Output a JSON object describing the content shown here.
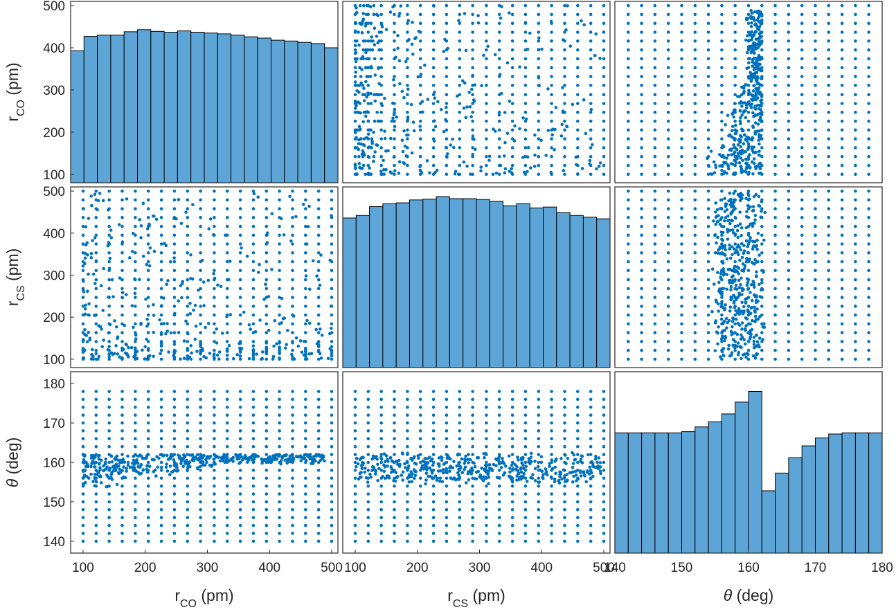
{
  "colors": {
    "marker": "#0072BD",
    "bar_fill": "#5DA5D6",
    "bar_edge": "#000000",
    "axes": "#262626",
    "background": "#FFFFFF"
  },
  "chart_data": {
    "type": "scatter-matrix",
    "variables": [
      {
        "key": "r_CO",
        "base": "r",
        "sub": "CO",
        "unit": " (pm)",
        "range": [
          80,
          510
        ],
        "ticks": [
          100,
          200,
          300,
          400,
          500
        ],
        "grid_values": [
          100,
          121,
          142,
          163,
          184,
          205,
          226,
          247,
          268,
          289,
          311,
          332,
          353,
          374,
          395,
          416,
          437,
          458,
          479,
          500
        ]
      },
      {
        "key": "r_CS",
        "base": "r",
        "sub": "CS",
        "unit": " (pm)",
        "range": [
          80,
          510
        ],
        "ticks": [
          100,
          200,
          300,
          400,
          500
        ],
        "grid_values": [
          100,
          121,
          142,
          163,
          184,
          205,
          226,
          247,
          268,
          289,
          311,
          332,
          353,
          374,
          395,
          416,
          437,
          458,
          479,
          500
        ]
      },
      {
        "key": "theta",
        "base": "θ",
        "sub": "",
        "unit": " (deg)",
        "range": [
          140,
          180
        ],
        "y_range": [
          137,
          183
        ],
        "ticks": [
          140,
          150,
          160,
          170,
          180
        ],
        "grid_values": [
          140,
          142,
          144,
          146,
          148,
          150,
          152,
          154,
          156,
          158,
          160,
          162,
          164,
          166,
          168,
          170,
          172,
          174,
          176,
          178
        ]
      }
    ],
    "histograms": [
      {
        "variable": "r_CO",
        "bin_edges": [
          80,
          101.5,
          123,
          144.5,
          166,
          187.5,
          209,
          230.5,
          252,
          273.5,
          295,
          316.5,
          338,
          359.5,
          381,
          402.5,
          424,
          445.5,
          467,
          488.5,
          510
        ],
        "values": [
          393,
          427,
          430,
          430,
          438,
          443,
          439,
          437,
          440,
          437,
          435,
          433,
          430,
          426,
          423,
          418,
          416,
          413,
          410,
          400
        ]
      },
      {
        "variable": "r_CS",
        "bin_edges": [
          80,
          101.5,
          123,
          144.5,
          166,
          187.5,
          209,
          230.5,
          252,
          273.5,
          295,
          316.5,
          338,
          359.5,
          381,
          402.5,
          424,
          445.5,
          467,
          488.5,
          510
        ],
        "values": [
          436,
          442,
          463,
          470,
          472,
          479,
          481,
          487,
          482,
          482,
          480,
          476,
          465,
          470,
          460,
          462,
          449,
          442,
          438,
          434
        ]
      },
      {
        "variable": "theta",
        "bin_edges": [
          140,
          142,
          144,
          146,
          148,
          150,
          152,
          154,
          156,
          158,
          160,
          162,
          164,
          166,
          168,
          170,
          172,
          174,
          176,
          178,
          180
        ],
        "values": [
          167.5,
          167.5,
          167.5,
          167.5,
          167.5,
          167.8,
          169,
          170.3,
          172.3,
          175.3,
          178,
          152.8,
          157.3,
          161.2,
          164.2,
          166.2,
          167.2,
          167.5,
          167.5,
          167.5
        ]
      }
    ],
    "grid": false,
    "legend": "none"
  }
}
